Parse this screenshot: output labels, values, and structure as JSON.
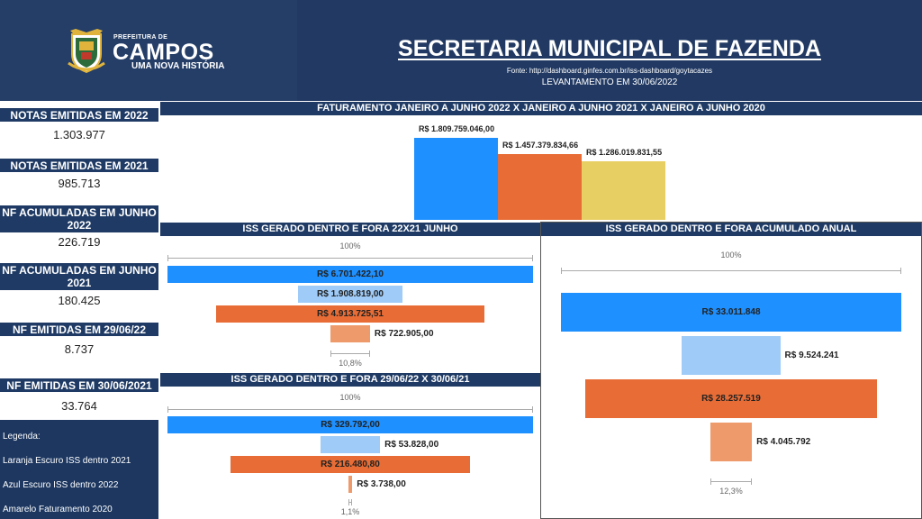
{
  "header": {
    "logo_top_text": "PREFEITURA DE",
    "logo_name": "CAMPOS",
    "logo_tagline": "UMA NOVA HISTÓRIA",
    "title": "SECRETARIA MUNICIPAL DE FAZENDA",
    "source": "Fonte: http://dashboard.ginfes.com.br/iss-dashboard/goytacazes",
    "survey": "LEVANTAMENTO EM 30/06/2022"
  },
  "kpis": [
    {
      "label": "NOTAS EMITIDAS EM 2022",
      "value": "1.303.977"
    },
    {
      "label": "NOTAS EMITIDAS EM 2021",
      "value": "985.713"
    },
    {
      "label": "NF ACUMULADAS EM JUNHO 2022",
      "value": "226.719"
    },
    {
      "label": "NF ACUMULADAS EM JUNHO 2021",
      "value": "180.425"
    },
    {
      "label": "NF EMITIDAS EM 29/06/22",
      "value": "8.737"
    },
    {
      "label": "NF EMITIDAS EM 30/06/2021",
      "value": "33.764"
    }
  ],
  "legend": {
    "title": "Legenda:",
    "items": [
      "Laranja Escuro ISS dentro 2021",
      "Azul Escuro ISS dentro  2022",
      "Amarelo Faturamento 2020"
    ]
  },
  "colors": {
    "blue": "#1e90ff",
    "light_blue": "#9ecbf7",
    "orange": "#e86c35",
    "light_orange": "#ef9a6a",
    "yellow": "#e8cf63",
    "navy": "#1f3b65"
  },
  "chart_data": [
    {
      "type": "bar",
      "title": "FATURAMENTO JANEIRO A JUNHO 2022 X JANEIRO A JUNHO 2021 X JANEIRO A JUNHO 2020",
      "values": [
        1809759046.0,
        1457379834.66,
        1286019831.55
      ],
      "labels": [
        "R$ 1.809.759.046,00",
        "R$ 1.457.379.834,66",
        "R$ 1.286.019.831,55"
      ],
      "colors": [
        "#1e90ff",
        "#e86c35",
        "#e8cf63"
      ]
    },
    {
      "type": "bar",
      "title": "ISS GERADO DENTRO E FORA 22X21 JUNHO",
      "top_label": "100%",
      "bottom_label": "10,8%",
      "values": [
        6701422.1,
        1908819.0,
        4913725.51,
        722905.0
      ],
      "labels": [
        "R$ 6.701.422,10",
        "R$ 1.908.819,00",
        "R$ 4.913.725,51",
        "R$ 722.905,00"
      ],
      "colors": [
        "#1e90ff",
        "#9ecbf7",
        "#e86c35",
        "#ef9a6a"
      ]
    },
    {
      "type": "bar",
      "title": "ISS GERADO DENTRO E FORA 29/06/22 X 30/06/21",
      "top_label": "100%",
      "bottom_label": "1,1%",
      "values": [
        329792.0,
        53828.0,
        216480.8,
        3738.0
      ],
      "labels": [
        "R$ 329.792,00",
        "R$ 53.828,00",
        "R$ 216.480,80",
        "R$ 3.738,00"
      ],
      "colors": [
        "#1e90ff",
        "#9ecbf7",
        "#e86c35",
        "#ef9a6a"
      ]
    },
    {
      "type": "bar",
      "title": "ISS GERADO DENTRO E FORA ACUMULADO ANUAL",
      "top_label": "100%",
      "bottom_label": "12,3%",
      "values": [
        33011848,
        9524241,
        28257519,
        4045792
      ],
      "labels": [
        "R$ 33.011.848",
        "R$ 9.524.241",
        "R$ 28.257.519",
        "R$ 4.045.792"
      ],
      "colors": [
        "#1e90ff",
        "#9ecbf7",
        "#e86c35",
        "#ef9a6a"
      ]
    }
  ]
}
